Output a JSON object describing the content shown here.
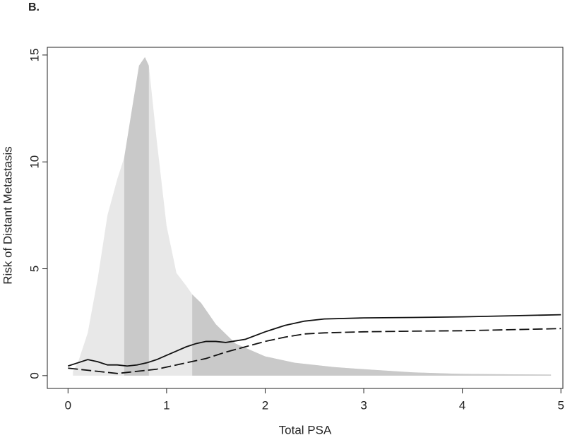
{
  "chart_data": {
    "type": "line",
    "panel_label": "B.",
    "x_label": "Total PSA",
    "y_label": "Risk of Distant Metastasis",
    "xlim": [
      -0.21,
      5.02
    ],
    "ylim": [
      -0.6,
      15.36
    ],
    "xticks": [
      0,
      1,
      2,
      3,
      4,
      5
    ],
    "yticks": [
      0,
      5,
      10,
      15
    ],
    "shaded_ranges": [
      [
        0.57,
        0.82
      ],
      [
        1.26,
        4.9
      ]
    ],
    "shade_color": "#c9c9c9",
    "series": [
      {
        "style": "area",
        "color": "#e8e8e8",
        "x": [
          0.05,
          0.1,
          0.2,
          0.3,
          0.4,
          0.5,
          0.57,
          0.65,
          0.72,
          0.78,
          0.82,
          0.9,
          1.0,
          1.1,
          1.2,
          1.26,
          1.35,
          1.5,
          1.7,
          2.0,
          2.3,
          2.7,
          3.0,
          3.5,
          4.0,
          4.5,
          4.9
        ],
        "values": [
          0.2,
          0.6,
          2,
          4.5,
          7.5,
          9.2,
          10.2,
          12.5,
          14.5,
          14.9,
          14.5,
          11,
          7,
          4.8,
          4.2,
          3.8,
          3.4,
          2.4,
          1.5,
          0.9,
          0.6,
          0.4,
          0.3,
          0.15,
          0.08,
          0.06,
          0.05
        ]
      },
      {
        "style": "solid",
        "color": "#111111",
        "x": [
          0,
          0.1,
          0.2,
          0.3,
          0.4,
          0.5,
          0.6,
          0.7,
          0.8,
          0.9,
          1.0,
          1.1,
          1.2,
          1.3,
          1.4,
          1.5,
          1.6,
          1.8,
          2.0,
          2.2,
          2.4,
          2.6,
          3.0,
          3.5,
          4.0,
          4.5,
          5.0
        ],
        "values": [
          0.45,
          0.6,
          0.75,
          0.65,
          0.5,
          0.5,
          0.45,
          0.5,
          0.6,
          0.75,
          0.95,
          1.15,
          1.35,
          1.5,
          1.6,
          1.6,
          1.55,
          1.7,
          2.05,
          2.35,
          2.55,
          2.65,
          2.7,
          2.72,
          2.75,
          2.8,
          2.85
        ]
      },
      {
        "style": "dashed",
        "color": "#111111",
        "x": [
          0,
          0.1,
          0.2,
          0.3,
          0.4,
          0.5,
          0.6,
          0.7,
          0.8,
          0.9,
          1.0,
          1.1,
          1.2,
          1.3,
          1.4,
          1.5,
          1.6,
          1.8,
          2.0,
          2.2,
          2.4,
          2.6,
          3.0,
          3.5,
          4.0,
          4.5,
          5.0
        ],
        "values": [
          0.35,
          0.3,
          0.25,
          0.2,
          0.15,
          0.1,
          0.15,
          0.2,
          0.25,
          0.3,
          0.4,
          0.5,
          0.6,
          0.7,
          0.8,
          0.95,
          1.1,
          1.35,
          1.6,
          1.8,
          1.95,
          2.0,
          2.05,
          2.08,
          2.1,
          2.15,
          2.2
        ]
      }
    ]
  }
}
